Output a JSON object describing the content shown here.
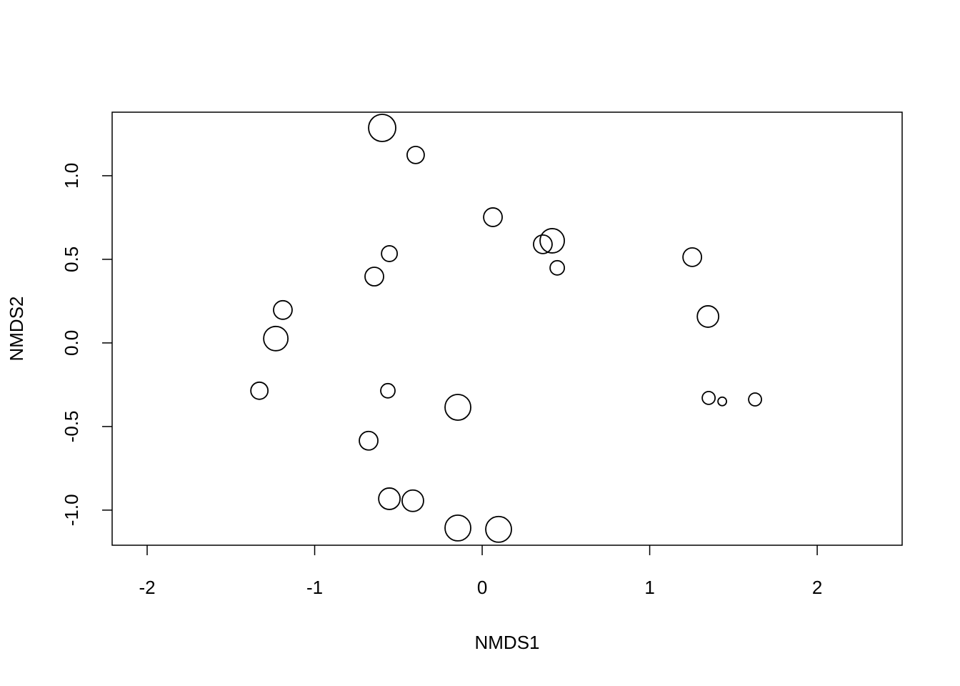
{
  "chart_data": {
    "type": "bubble",
    "x_label": "NMDS1",
    "y_label": "NMDS2",
    "x": [
      -0.597,
      -0.397,
      0.064,
      0.418,
      0.362,
      0.448,
      1.254,
      -0.554,
      -0.644,
      -1.19,
      -1.232,
      1.348,
      -1.33,
      -0.563,
      -0.145,
      1.352,
      1.433,
      1.629,
      -0.678,
      -0.554,
      -0.414,
      -0.145,
      0.098
    ],
    "values": [
      1.286,
      1.124,
      0.752,
      0.611,
      0.59,
      0.449,
      0.513,
      0.534,
      0.397,
      0.197,
      0.026,
      0.158,
      -0.286,
      -0.286,
      -0.385,
      -0.329,
      -0.35,
      -0.338,
      -0.585,
      -0.932,
      -0.944,
      -1.107,
      -1.115
    ],
    "sizes": [
      1.9,
      1.2,
      1.3,
      1.7,
      1.3,
      1.0,
      1.3,
      1.1,
      1.3,
      1.3,
      1.7,
      1.5,
      1.2,
      1.0,
      1.8,
      0.9,
      0.6,
      0.9,
      1.3,
      1.5,
      1.5,
      1.8,
      1.8
    ],
    "color": "#000000",
    "xlim": [
      -2.209,
      2.507
    ],
    "ylim": [
      -1.21,
      1.38
    ],
    "xticks": [
      -2,
      -1,
      0,
      1,
      2
    ],
    "yticks": [
      {
        "value": -1,
        "label": "-1.0"
      },
      -0.5,
      {
        "value": 0,
        "label": "0.0"
      },
      0.5,
      {
        "value": 1,
        "label": "1.0"
      }
    ],
    "grid": false
  }
}
